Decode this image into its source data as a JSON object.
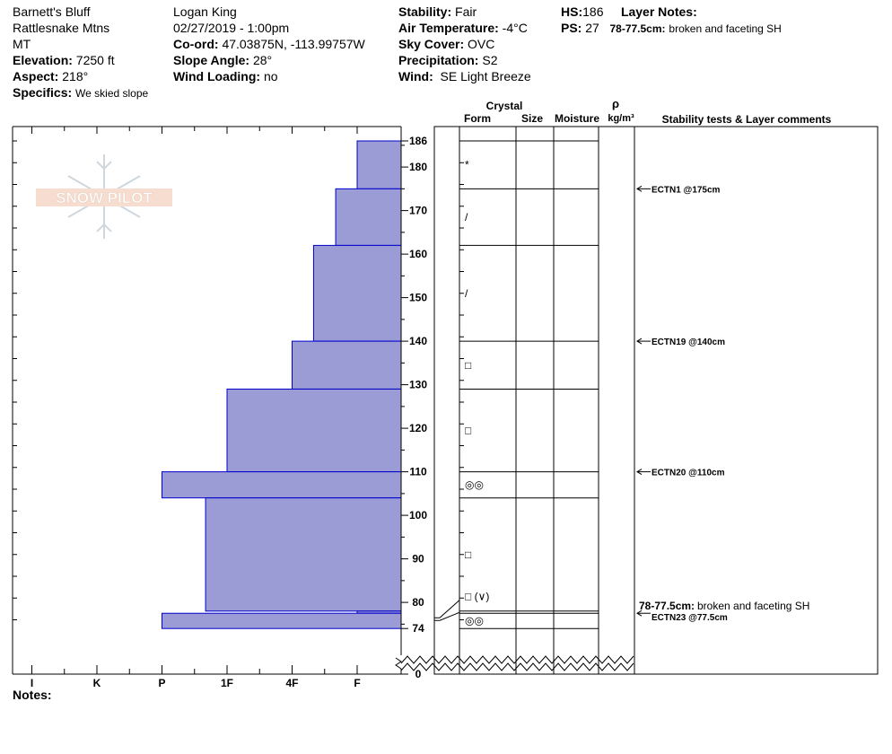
{
  "header": {
    "location": "Barnett's Bluff",
    "range": "Rattlesnake Mtns",
    "state": "MT",
    "elevation_label": "Elevation:",
    "elevation": "7250 ft",
    "aspect_label": "Aspect:",
    "aspect": "218°",
    "specifics_label": "Specifics:",
    "specifics": "We skied slope",
    "observer": "Logan King",
    "datetime": "02/27/2019 - 1:00pm",
    "coord_label": "Co-ord:",
    "coord": "47.03875N, -113.99757W",
    "slope_label": "Slope Angle:",
    "slope": "28°",
    "wind_loading_label": "Wind Loading:",
    "wind_loading": "no",
    "stability_label": "Stability:",
    "stability": "Fair",
    "air_temp_label": "Air Temperature:",
    "air_temp": "-4°C",
    "sky_label": "Sky Cover:",
    "sky": "OVC",
    "precip_label": "Precipitation:",
    "precip": "S2",
    "wind_label": "Wind:",
    "wind": "SE Light Breeze",
    "hs_label": "HS:",
    "hs": "186",
    "ps_label": "PS:",
    "ps": "27",
    "layer_notes_label": "Layer Notes:",
    "layer_note_range": "78-77.5cm:",
    "layer_note_text": "broken and faceting SH"
  },
  "columns": {
    "crystal": "Crystal",
    "form": "Form",
    "size": "Size",
    "moisture": "Moisture",
    "rho": "ρ",
    "density_unit": "kg/m³",
    "stability": "Stability tests & Layer comments"
  },
  "logo_text": "SNOW PILOT",
  "notes_label": "Notes:",
  "chart_data": {
    "type": "bar",
    "orientation": "horizontal",
    "title": "",
    "xlabel": "",
    "ylabel": "",
    "x_categories": [
      "I",
      "K",
      "P",
      "1F",
      "4F",
      "F"
    ],
    "y_ticks": [
      0,
      74,
      80,
      90,
      100,
      110,
      120,
      130,
      140,
      150,
      160,
      170,
      180,
      186
    ],
    "ylim": [
      0,
      186
    ],
    "axis_break_below": 74,
    "layers": [
      {
        "top": 186,
        "bottom": 175,
        "hardness": "F",
        "hardness_index": 0.0,
        "form": "*"
      },
      {
        "top": 175,
        "bottom": 162,
        "hardness": "F+",
        "hardness_index": 0.33,
        "form": "/"
      },
      {
        "top": 162,
        "bottom": 140,
        "hardness": "4F-",
        "hardness_index": 0.67,
        "form": "/"
      },
      {
        "top": 140,
        "bottom": 129,
        "hardness": "4F",
        "hardness_index": 1.0,
        "form": "□"
      },
      {
        "top": 129,
        "bottom": 110,
        "hardness": "1F",
        "hardness_index": 2.0,
        "form": "□"
      },
      {
        "top": 110,
        "bottom": 104,
        "hardness": "P",
        "hardness_index": 3.0,
        "form": "◎◎"
      },
      {
        "top": 104,
        "bottom": 78,
        "hardness": "1F-",
        "hardness_index": 2.33,
        "form": "□"
      },
      {
        "top": 78,
        "bottom": 77.5,
        "hardness": "F",
        "hardness_index": 0.0,
        "form": "□ (∨)"
      },
      {
        "top": 77.5,
        "bottom": 74,
        "hardness": "P",
        "hardness_index": 3.0,
        "form": "◎◎"
      }
    ],
    "stability_tests": [
      {
        "depth": 175,
        "label": "ECTN1 @175cm"
      },
      {
        "depth": 140,
        "label": "ECTN19 @140cm"
      },
      {
        "depth": 110,
        "label": "ECTN20 @110cm"
      },
      {
        "depth": 77.5,
        "label": "ECTN23 @77.5cm"
      }
    ],
    "colors": {
      "bar_fill": "#9b9bd6",
      "bar_stroke": "#0000cc",
      "line": "#000000"
    }
  }
}
